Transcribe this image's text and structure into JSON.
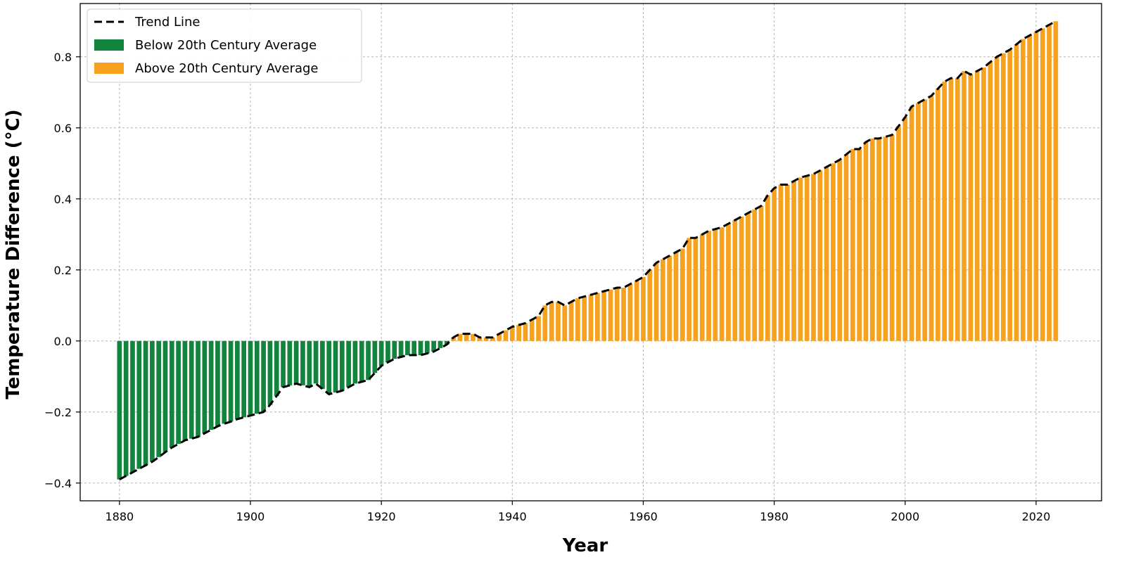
{
  "colors": {
    "below": "#13843e",
    "above": "#f6a21e",
    "trend": "#000000",
    "grid": "#b5b5b5"
  },
  "chart_data": {
    "type": "bar",
    "title": "",
    "xlabel": "Year",
    "ylabel": "Temperature Difference (°C)",
    "xlim": [
      1874,
      2030
    ],
    "ylim": [
      -0.45,
      0.95
    ],
    "xticks": [
      1880,
      1900,
      1920,
      1940,
      1960,
      1980,
      2000,
      2020
    ],
    "xtick_labels": [
      "1880",
      "1900",
      "1920",
      "1940",
      "1960",
      "1980",
      "2000",
      "2020"
    ],
    "yticks": [
      -0.4,
      -0.2,
      0.0,
      0.2,
      0.4,
      0.6,
      0.8
    ],
    "ytick_labels": [
      "−0.4",
      "−0.2",
      "0.0",
      "0.2",
      "0.4",
      "0.6",
      "0.8"
    ],
    "grid": true,
    "legend": {
      "position": "top-left",
      "entries": [
        {
          "label": "Trend Line",
          "kind": "line"
        },
        {
          "label": "Below 20th Century Average",
          "kind": "below"
        },
        {
          "label": "Above 20th Century Average",
          "kind": "above"
        }
      ]
    },
    "x_start": 1880,
    "x_end": 2023,
    "anchor_years": [
      1880,
      1881,
      1883,
      1885,
      1888,
      1890,
      1892,
      1895,
      1898,
      1900,
      1902,
      1903,
      1905,
      1907,
      1909,
      1910,
      1912,
      1914,
      1916,
      1918,
      1920,
      1922,
      1924,
      1926,
      1928,
      1929,
      1930,
      1931,
      1932,
      1934,
      1935,
      1937,
      1938,
      1940,
      1942,
      1944,
      1945,
      1946,
      1947,
      1948,
      1950,
      1952,
      1954,
      1956,
      1957,
      1958,
      1960,
      1962,
      1964,
      1966,
      1967,
      1968,
      1970,
      1972,
      1974,
      1976,
      1977,
      1978,
      1979,
      1980,
      1981,
      1982,
      1984,
      1986,
      1988,
      1990,
      1992,
      1993,
      1994,
      1995,
      1996,
      1998,
      2000,
      2001,
      2002,
      2004,
      2006,
      2007,
      2008,
      2009,
      2010,
      2012,
      2014,
      2016,
      2018,
      2020,
      2022,
      2023
    ],
    "anchor_values": [
      -0.39,
      -0.38,
      -0.36,
      -0.34,
      -0.3,
      -0.28,
      -0.27,
      -0.24,
      -0.22,
      -0.21,
      -0.2,
      -0.18,
      -0.13,
      -0.12,
      -0.13,
      -0.12,
      -0.15,
      -0.14,
      -0.12,
      -0.11,
      -0.07,
      -0.05,
      -0.04,
      -0.04,
      -0.03,
      -0.02,
      -0.01,
      0.01,
      0.02,
      0.02,
      0.01,
      0.01,
      0.02,
      0.04,
      0.05,
      0.07,
      0.1,
      0.11,
      0.11,
      0.1,
      0.12,
      0.13,
      0.14,
      0.15,
      0.15,
      0.16,
      0.18,
      0.22,
      0.24,
      0.26,
      0.29,
      0.29,
      0.31,
      0.32,
      0.34,
      0.36,
      0.37,
      0.38,
      0.41,
      0.43,
      0.44,
      0.44,
      0.46,
      0.47,
      0.49,
      0.51,
      0.54,
      0.54,
      0.56,
      0.57,
      0.57,
      0.58,
      0.63,
      0.66,
      0.67,
      0.69,
      0.73,
      0.74,
      0.74,
      0.76,
      0.75,
      0.77,
      0.8,
      0.82,
      0.85,
      0.87,
      0.89,
      0.9
    ],
    "bar_width_years": 0.72
  }
}
